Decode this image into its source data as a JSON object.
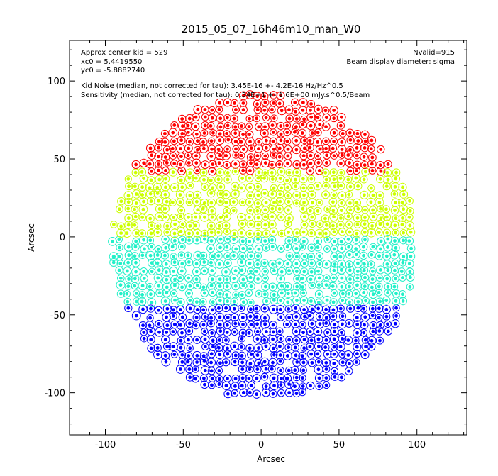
{
  "chart_data": {
    "type": "scatter",
    "title": "2015_05_07_16h46m10_man_W0",
    "xlabel": "Arcsec",
    "ylabel": "Arcsec",
    "xlim": [
      -123,
      132
    ],
    "ylim": [
      -127,
      126
    ],
    "xticks": [
      -100,
      -50,
      0,
      50,
      100
    ],
    "yticks": [
      -100,
      -50,
      0,
      50,
      100
    ],
    "grid": false,
    "annotations_left": [
      "Approx center kid = 529",
      "xc0 = 5.4419550",
      "yc0 = -5.8882740",
      "Kid Noise (median, not corrected for tau): 3.45E-16 +- 4.2E-16 Hz/Hz^0.5",
      "Sensitivity (median, not corrected for tau): 0.34E+1 +- 1.6E+00 mJy.s^0.5/Beam"
    ],
    "annotations_right": [
      "Nvalid=915",
      "Beam display diameter: sigma"
    ],
    "detector_field": {
      "center": [
        2,
        -6
      ],
      "radius": 98,
      "spacing": 4.9,
      "band_edges_y": [
        42,
        2,
        -45
      ]
    },
    "bands": [
      {
        "y_range": [
          42,
          103
        ],
        "color": "#ff0000"
      },
      {
        "y_range": [
          2,
          42
        ],
        "color": "#ccff00"
      },
      {
        "y_range": [
          -45,
          2
        ],
        "color": "#22f0c8"
      },
      {
        "y_range": [
          -103,
          -45
        ],
        "color": "#0000ff"
      }
    ],
    "marker": "filled dot inside open circle"
  }
}
